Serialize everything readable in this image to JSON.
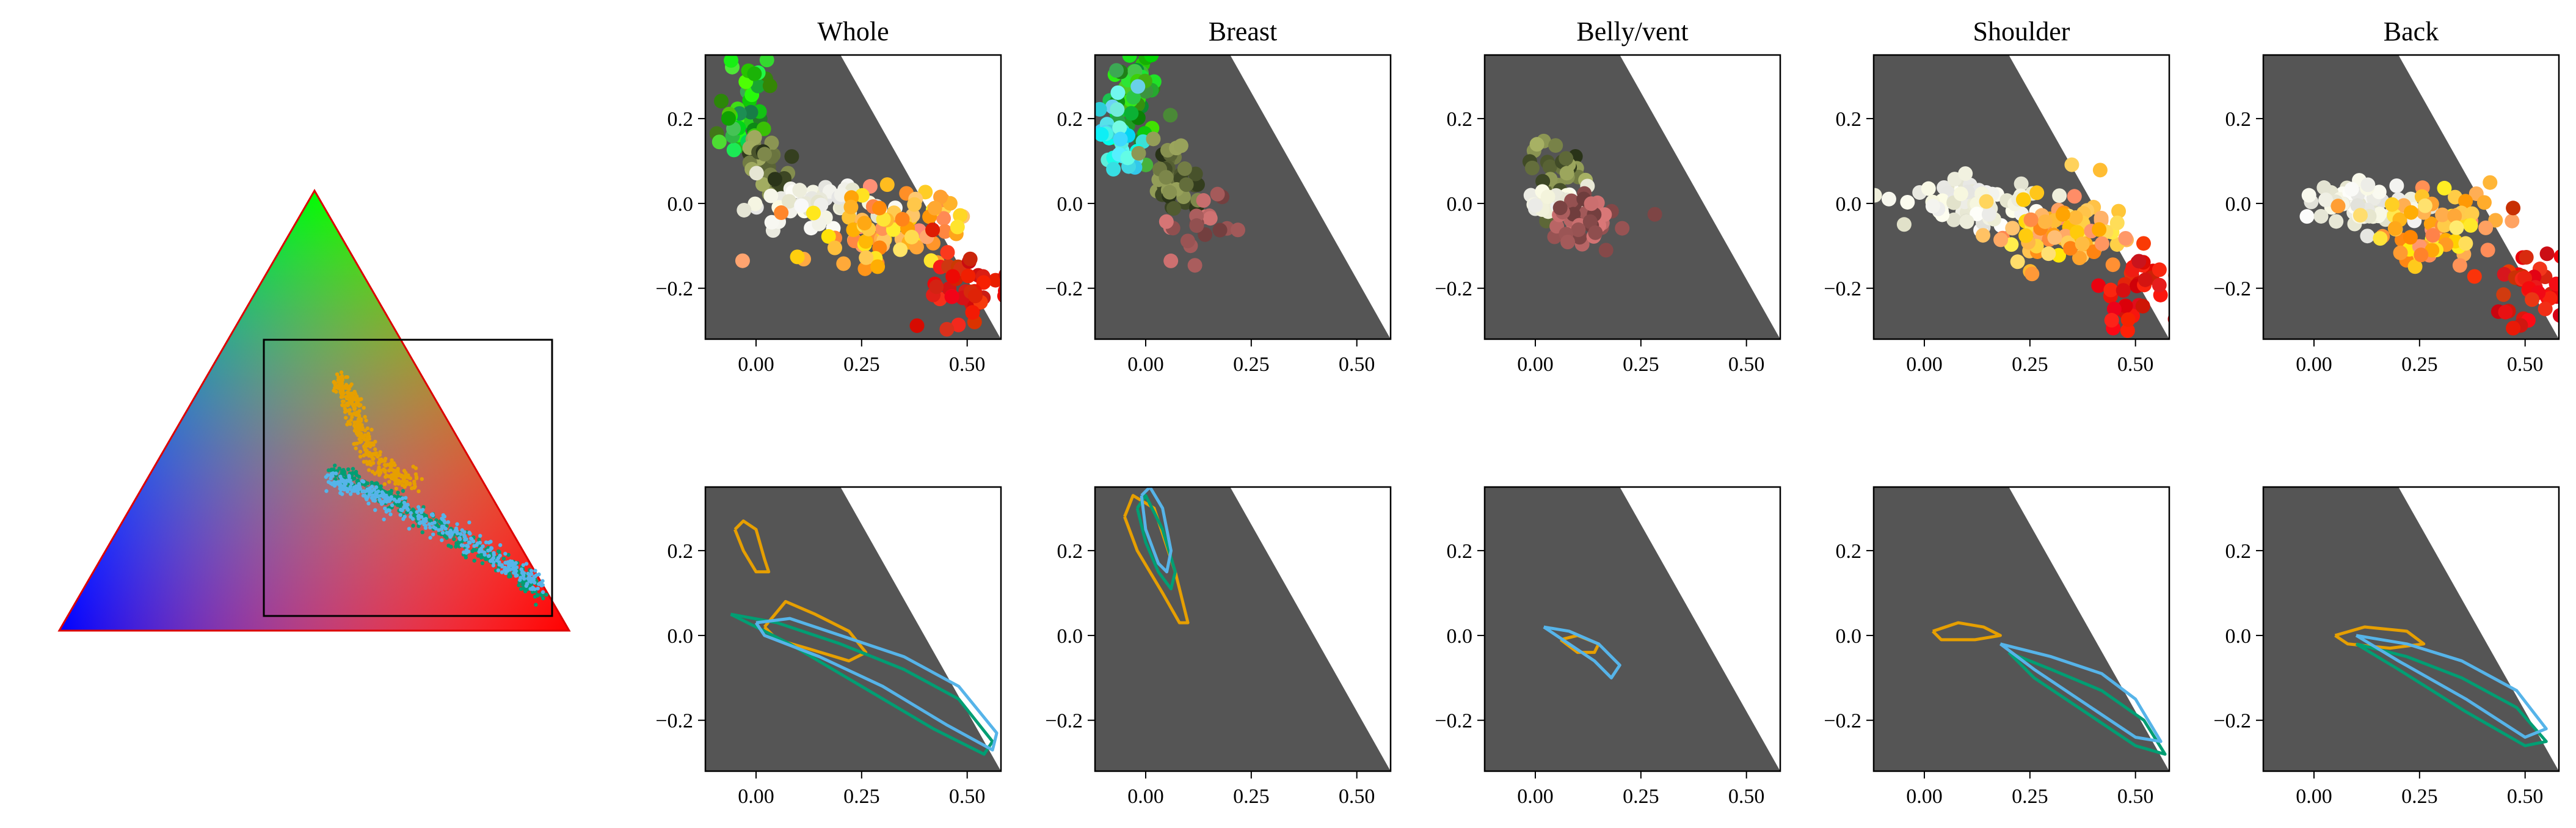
{
  "figure": {
    "colors": {
      "panel_bg": "#555555",
      "frame": "#000000",
      "series_a": "#E69F00",
      "series_b": "#009E73",
      "series_c": "#56B4E9",
      "triangle_outline": "#dd0000",
      "triangle_vertex_red": "#ff0000",
      "triangle_vertex_green": "#00ff00",
      "triangle_vertex_blue": "#0000ff"
    }
  },
  "chart_data": [
    {
      "type": "scatter",
      "panel": "ternary-overview",
      "title": "",
      "description_of_marks": "RGB colour triangle with inset zoom box",
      "series": [
        {
          "color": "#E69F00",
          "x": [
            0.06,
            0.08,
            0.1,
            0.12,
            0.15,
            0.2,
            0.24
          ],
          "y": [
            0.26,
            0.22,
            0.18,
            0.12,
            0.06,
            0.02,
            0.0
          ]
        },
        {
          "color": "#009E73",
          "x": [
            0.05,
            0.12,
            0.2,
            0.3,
            0.4,
            0.5,
            0.55
          ],
          "y": [
            0.03,
            0.0,
            -0.04,
            -0.1,
            -0.16,
            -0.22,
            -0.27
          ]
        },
        {
          "color": "#56B4E9",
          "x": [
            0.04,
            0.1,
            0.18,
            0.28,
            0.38,
            0.48,
            0.55
          ],
          "y": [
            0.01,
            -0.01,
            -0.04,
            -0.09,
            -0.14,
            -0.2,
            -0.25
          ]
        }
      ],
      "zoom_box": {
        "xlim": [
          -0.12,
          0.58
        ],
        "ylim": [
          -0.32,
          0.35
        ]
      }
    },
    {
      "type": "scatter",
      "panel": "Whole",
      "title": "Whole",
      "xlim": [
        -0.12,
        0.58
      ],
      "ylim": [
        -0.32,
        0.35
      ],
      "x_ticks": [
        "0.00",
        "0.25",
        "0.50"
      ],
      "y_ticks": [
        "0.2",
        "0.0",
        "−0.2"
      ],
      "clouds": [
        {
          "x": -0.02,
          "y": 0.22,
          "sx": 0.03,
          "sy": 0.06,
          "n": 40,
          "palette": "green"
        },
        {
          "x": 0.04,
          "y": 0.08,
          "sx": 0.03,
          "sy": 0.04,
          "n": 30,
          "palette": "olive"
        },
        {
          "x": 0.12,
          "y": 0.0,
          "sx": 0.08,
          "sy": 0.025,
          "n": 60,
          "palette": "white"
        },
        {
          "x": 0.3,
          "y": -0.06,
          "sx": 0.1,
          "sy": 0.05,
          "n": 80,
          "palette": "orange"
        },
        {
          "x": 0.5,
          "y": -0.2,
          "sx": 0.05,
          "sy": 0.05,
          "n": 40,
          "palette": "red"
        }
      ]
    },
    {
      "type": "scatter",
      "panel": "Breast",
      "title": "Breast",
      "xlim": [
        -0.12,
        0.58
      ],
      "ylim": [
        -0.32,
        0.35
      ],
      "x_ticks": [
        "0.00",
        "0.25",
        "0.50"
      ],
      "y_ticks": [
        "0.2",
        "0.0",
        "−0.2"
      ],
      "clouds": [
        {
          "x": -0.02,
          "y": 0.25,
          "sx": 0.03,
          "sy": 0.06,
          "n": 50,
          "palette": "green"
        },
        {
          "x": -0.06,
          "y": 0.15,
          "sx": 0.03,
          "sy": 0.05,
          "n": 30,
          "palette": "cyan"
        },
        {
          "x": 0.06,
          "y": 0.06,
          "sx": 0.04,
          "sy": 0.05,
          "n": 40,
          "palette": "olive"
        },
        {
          "x": 0.12,
          "y": -0.04,
          "sx": 0.04,
          "sy": 0.04,
          "n": 20,
          "palette": "rose"
        }
      ]
    },
    {
      "type": "scatter",
      "panel": "Belly/vent",
      "title": "Belly/vent",
      "xlim": [
        -0.12,
        0.58
      ],
      "ylim": [
        -0.32,
        0.35
      ],
      "x_ticks": [
        "0.00",
        "0.25",
        "0.50"
      ],
      "y_ticks": [
        "0.2",
        "0.0",
        "−0.2"
      ],
      "clouds": [
        {
          "x": 0.05,
          "y": 0.07,
          "sx": 0.03,
          "sy": 0.04,
          "n": 30,
          "palette": "olive"
        },
        {
          "x": 0.06,
          "y": 0.0,
          "sx": 0.04,
          "sy": 0.015,
          "n": 30,
          "palette": "white"
        },
        {
          "x": 0.13,
          "y": -0.05,
          "sx": 0.04,
          "sy": 0.03,
          "n": 40,
          "palette": "rose"
        }
      ]
    },
    {
      "type": "scatter",
      "panel": "Shoulder",
      "title": "Shoulder",
      "xlim": [
        -0.12,
        0.58
      ],
      "ylim": [
        -0.32,
        0.35
      ],
      "x_ticks": [
        "0.00",
        "0.25",
        "0.50"
      ],
      "y_ticks": [
        "0.2",
        "0.0",
        "−0.2"
      ],
      "clouds": [
        {
          "x": 0.12,
          "y": 0.0,
          "sx": 0.08,
          "sy": 0.025,
          "n": 70,
          "palette": "white"
        },
        {
          "x": 0.32,
          "y": -0.07,
          "sx": 0.08,
          "sy": 0.045,
          "n": 80,
          "palette": "orange"
        },
        {
          "x": 0.5,
          "y": -0.2,
          "sx": 0.05,
          "sy": 0.05,
          "n": 40,
          "palette": "red"
        }
      ]
    },
    {
      "type": "scatter",
      "panel": "Back",
      "title": "Back",
      "xlim": [
        -0.12,
        0.58
      ],
      "ylim": [
        -0.32,
        0.35
      ],
      "x_ticks": [
        "0.00",
        "0.25",
        "0.50"
      ],
      "y_ticks": [
        "0.2",
        "0.0",
        "−0.2"
      ],
      "clouds": [
        {
          "x": 0.12,
          "y": 0.0,
          "sx": 0.07,
          "sy": 0.025,
          "n": 60,
          "palette": "white"
        },
        {
          "x": 0.3,
          "y": -0.06,
          "sx": 0.08,
          "sy": 0.045,
          "n": 70,
          "palette": "orange"
        },
        {
          "x": 0.5,
          "y": -0.2,
          "sx": 0.05,
          "sy": 0.05,
          "n": 40,
          "palette": "red"
        }
      ]
    },
    {
      "type": "line",
      "panel": "Whole contours",
      "title": "",
      "xlim": [
        -0.12,
        0.58
      ],
      "ylim": [
        -0.32,
        0.35
      ],
      "x_ticks": [
        "0.00",
        "0.25",
        "0.50"
      ],
      "y_ticks": [
        "0.2",
        "0.0",
        "−0.2"
      ],
      "series": [
        {
          "color": "#E69F00",
          "x": [
            -0.05,
            -0.03,
            0.0,
            0.02,
            0.03,
            0.0,
            -0.03,
            -0.05
          ],
          "y": [
            0.25,
            0.27,
            0.25,
            0.18,
            0.15,
            0.15,
            0.2,
            0.25
          ]
        },
        {
          "color": "#E69F00",
          "x": [
            0.02,
            0.07,
            0.14,
            0.22,
            0.26,
            0.22,
            0.12,
            0.05,
            0.02
          ],
          "y": [
            0.02,
            0.08,
            0.05,
            0.01,
            -0.04,
            -0.06,
            -0.03,
            -0.01,
            0.02
          ]
        },
        {
          "color": "#009E73",
          "x": [
            -0.06,
            0.05,
            0.2,
            0.35,
            0.48,
            0.56,
            0.54,
            0.42,
            0.25,
            0.08,
            -0.06
          ],
          "y": [
            0.05,
            0.03,
            -0.02,
            -0.08,
            -0.15,
            -0.25,
            -0.28,
            -0.22,
            -0.12,
            -0.02,
            0.05
          ]
        },
        {
          "color": "#56B4E9",
          "x": [
            0.0,
            0.08,
            0.2,
            0.35,
            0.48,
            0.57,
            0.56,
            0.45,
            0.3,
            0.15,
            0.02,
            0.0
          ],
          "y": [
            0.03,
            0.04,
            0.0,
            -0.05,
            -0.12,
            -0.23,
            -0.27,
            -0.21,
            -0.12,
            -0.05,
            0.0,
            0.03
          ]
        }
      ]
    },
    {
      "type": "line",
      "panel": "Breast contours",
      "title": "",
      "xlim": [
        -0.12,
        0.58
      ],
      "ylim": [
        -0.32,
        0.35
      ],
      "x_ticks": [
        "0.00",
        "0.25",
        "0.50"
      ],
      "y_ticks": [
        "0.2",
        "0.0",
        "−0.2"
      ],
      "series": [
        {
          "color": "#E69F00",
          "x": [
            -0.05,
            -0.03,
            0.02,
            0.07,
            0.1,
            0.08,
            0.04,
            -0.02,
            -0.05
          ],
          "y": [
            0.28,
            0.33,
            0.3,
            0.15,
            0.03,
            0.03,
            0.1,
            0.2,
            0.28
          ]
        },
        {
          "color": "#009E73",
          "x": [
            -0.02,
            0.0,
            0.04,
            0.07,
            0.06,
            0.03,
            0.0,
            -0.02
          ],
          "y": [
            0.3,
            0.33,
            0.25,
            0.15,
            0.11,
            0.15,
            0.22,
            0.3
          ]
        },
        {
          "color": "#56B4E9",
          "x": [
            -0.01,
            0.01,
            0.04,
            0.06,
            0.05,
            0.03,
            0.0,
            -0.01
          ],
          "y": [
            0.33,
            0.35,
            0.3,
            0.2,
            0.15,
            0.17,
            0.25,
            0.33
          ]
        }
      ]
    },
    {
      "type": "line",
      "panel": "Belly/vent contours",
      "title": "",
      "xlim": [
        -0.12,
        0.58
      ],
      "ylim": [
        -0.32,
        0.35
      ],
      "x_ticks": [
        "0.00",
        "0.25",
        "0.50"
      ],
      "y_ticks": [
        "0.2",
        "0.0",
        "−0.2"
      ],
      "series": [
        {
          "color": "#E69F00",
          "x": [
            0.06,
            0.1,
            0.15,
            0.14,
            0.1,
            0.06
          ],
          "y": [
            -0.01,
            0.0,
            -0.02,
            -0.04,
            -0.04,
            -0.01
          ]
        },
        {
          "color": "#56B4E9",
          "x": [
            0.02,
            0.08,
            0.15,
            0.2,
            0.18,
            0.14,
            0.08,
            0.02
          ],
          "y": [
            0.02,
            0.01,
            -0.02,
            -0.07,
            -0.1,
            -0.06,
            -0.02,
            0.02
          ]
        }
      ]
    },
    {
      "type": "line",
      "panel": "Shoulder contours",
      "title": "",
      "xlim": [
        -0.12,
        0.58
      ],
      "ylim": [
        -0.32,
        0.35
      ],
      "x_ticks": [
        "0.00",
        "0.25",
        "0.50"
      ],
      "y_ticks": [
        "0.2",
        "0.0",
        "−0.2"
      ],
      "series": [
        {
          "color": "#E69F00",
          "x": [
            0.02,
            0.08,
            0.14,
            0.18,
            0.12,
            0.04,
            0.02
          ],
          "y": [
            0.01,
            0.03,
            0.02,
            0.0,
            -0.01,
            -0.01,
            0.01
          ]
        },
        {
          "color": "#009E73",
          "x": [
            0.2,
            0.3,
            0.42,
            0.52,
            0.57,
            0.5,
            0.38,
            0.26,
            0.2
          ],
          "y": [
            -0.04,
            -0.08,
            -0.13,
            -0.2,
            -0.28,
            -0.26,
            -0.18,
            -0.1,
            -0.04
          ]
        },
        {
          "color": "#56B4E9",
          "x": [
            0.18,
            0.3,
            0.42,
            0.5,
            0.56,
            0.5,
            0.38,
            0.26,
            0.18
          ],
          "y": [
            -0.02,
            -0.05,
            -0.09,
            -0.15,
            -0.25,
            -0.24,
            -0.16,
            -0.08,
            -0.02
          ]
        }
      ]
    },
    {
      "type": "line",
      "panel": "Back contours",
      "title": "",
      "xlim": [
        -0.12,
        0.58
      ],
      "ylim": [
        -0.32,
        0.35
      ],
      "x_ticks": [
        "0.00",
        "0.25",
        "0.50"
      ],
      "y_ticks": [
        "0.2",
        "0.0",
        "−0.2"
      ],
      "series": [
        {
          "color": "#E69F00",
          "x": [
            0.05,
            0.12,
            0.22,
            0.26,
            0.18,
            0.08,
            0.05
          ],
          "y": [
            0.0,
            0.02,
            0.01,
            -0.02,
            -0.03,
            -0.02,
            0.0
          ]
        },
        {
          "color": "#009E73",
          "x": [
            0.1,
            0.22,
            0.35,
            0.48,
            0.55,
            0.5,
            0.36,
            0.2,
            0.1
          ],
          "y": [
            -0.02,
            -0.05,
            -0.1,
            -0.17,
            -0.25,
            -0.26,
            -0.18,
            -0.08,
            -0.02
          ]
        },
        {
          "color": "#56B4E9",
          "x": [
            0.1,
            0.22,
            0.35,
            0.48,
            0.55,
            0.5,
            0.36,
            0.2,
            0.1
          ],
          "y": [
            0.0,
            -0.02,
            -0.06,
            -0.13,
            -0.22,
            -0.24,
            -0.15,
            -0.06,
            0.0
          ]
        }
      ]
    }
  ]
}
